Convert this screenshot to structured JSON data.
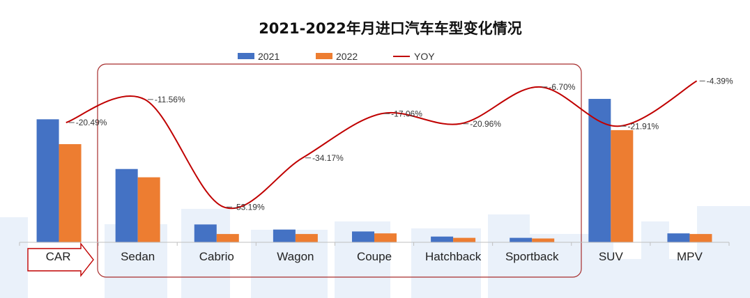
{
  "colors": {
    "s2021": "#4472C4",
    "s2022": "#ED7D31",
    "yoy": "#C00000",
    "frame": "#A62C2C",
    "bg_blocks": "#EAF1FA"
  },
  "chart_data": {
    "type": "bar",
    "title": "2021-2022年月进口汽车车型变化情况",
    "categories": [
      "CAR",
      "Sedan",
      "Cabrio",
      "Wagon",
      "Coupe",
      "Hatchback",
      "Sportback",
      "SUV",
      "MPV"
    ],
    "series": [
      {
        "name": "2021",
        "values": [
          193,
          115,
          28,
          20,
          17,
          9,
          7,
          225,
          14
        ]
      },
      {
        "name": "2022",
        "values": [
          154,
          102,
          13,
          13,
          14,
          7,
          6,
          176,
          13
        ]
      }
    ],
    "yoy": {
      "name": "YOY",
      "values": [
        -20.49,
        -11.56,
        -53.19,
        -34.17,
        -17.06,
        -20.96,
        -6.7,
        -21.91,
        -4.39
      ],
      "labels": [
        "-20.49%",
        "-11.56%",
        "-53.19%",
        "-34.17%",
        "-17.06%",
        "-20.96%",
        "-6.70%",
        "-21.91%",
        "-4.39%"
      ]
    },
    "ylim": [
      0,
      260
    ],
    "yoy_lim": [
      -62,
      0
    ],
    "legend_position": "top"
  }
}
